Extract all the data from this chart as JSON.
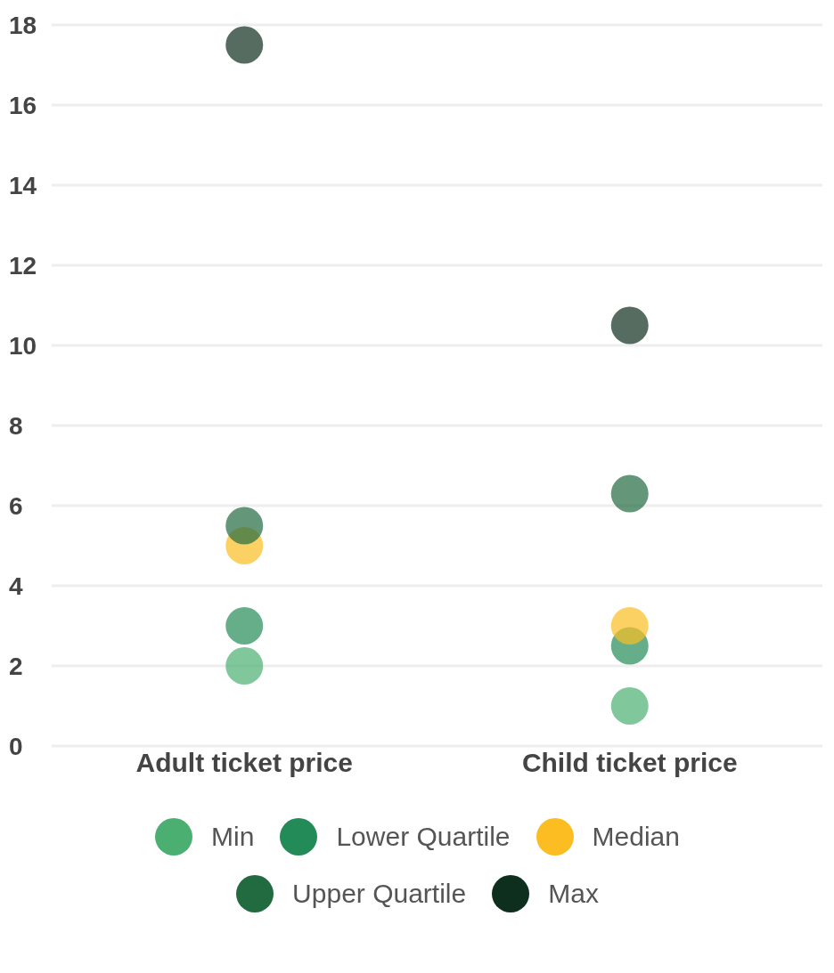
{
  "chart_data": {
    "type": "scatter",
    "categories": [
      "Adult ticket price",
      "Child ticket price"
    ],
    "series": [
      {
        "name": "Min",
        "color": "#4caf72",
        "values": [
          2,
          1
        ]
      },
      {
        "name": "Lower Quartile",
        "color": "#238b57",
        "values": [
          3,
          2.5
        ]
      },
      {
        "name": "Median",
        "color": "#fbbd22",
        "values": [
          5,
          3
        ]
      },
      {
        "name": "Upper Quartile",
        "color": "#226b40",
        "values": [
          5.5,
          6.3
        ]
      },
      {
        "name": "Max",
        "color": "#0e2e1e",
        "values": [
          17.5,
          10.5
        ]
      }
    ],
    "ylim": [
      0,
      18
    ],
    "yticks": [
      0,
      2,
      4,
      6,
      8,
      10,
      12,
      14,
      16,
      18
    ],
    "grid": "y",
    "legend": "bottom",
    "marker": "circle"
  }
}
